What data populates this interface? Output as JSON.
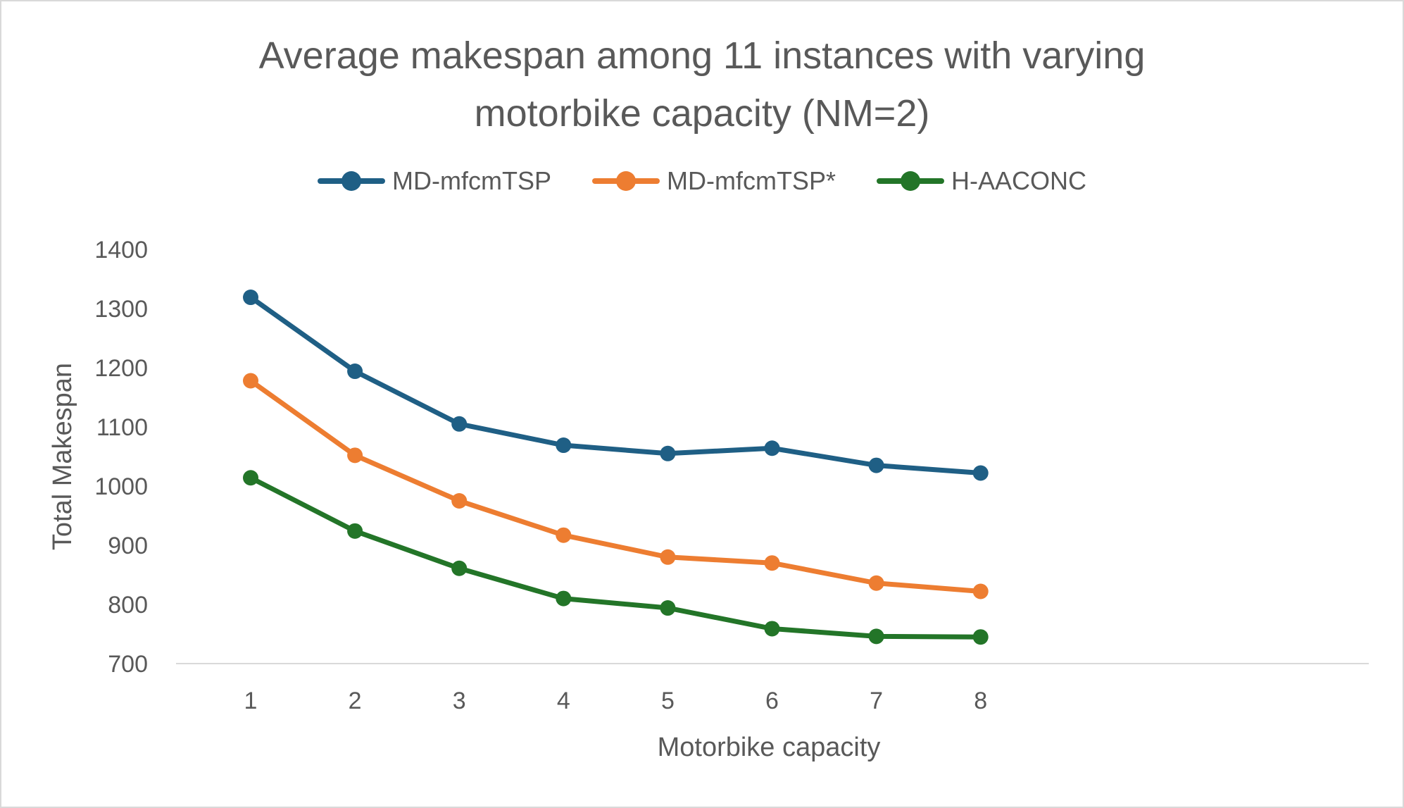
{
  "chart_data": {
    "type": "line",
    "title_lines": [
      "Average makespan among 11 instances with varying",
      "motorbike capacity (NM=2)"
    ],
    "xlabel": "Motorbike capacity",
    "ylabel": "Total Makespan",
    "categories": [
      "1",
      "2",
      "3",
      "4",
      "5",
      "6",
      "7",
      "8"
    ],
    "y_ticks": [
      "700",
      "800",
      "900",
      "1000",
      "1100",
      "1200",
      "1300",
      "1400"
    ],
    "ylim": [
      700,
      1400
    ],
    "grid": false,
    "legend_position": "top",
    "series": [
      {
        "name": "MD-mfcmTSP",
        "color": "#1f5f85",
        "values": [
          1319,
          1194,
          1105,
          1069,
          1055,
          1064,
          1035,
          1022
        ]
      },
      {
        "name": "MD-mfcmTSP*",
        "color": "#ed7d31",
        "values": [
          1178,
          1052,
          975,
          917,
          880,
          870,
          836,
          822
        ]
      },
      {
        "name": "H-AACONC",
        "color": "#237528",
        "values": [
          1014,
          924,
          861,
          810,
          794,
          759,
          746,
          745
        ]
      }
    ]
  }
}
